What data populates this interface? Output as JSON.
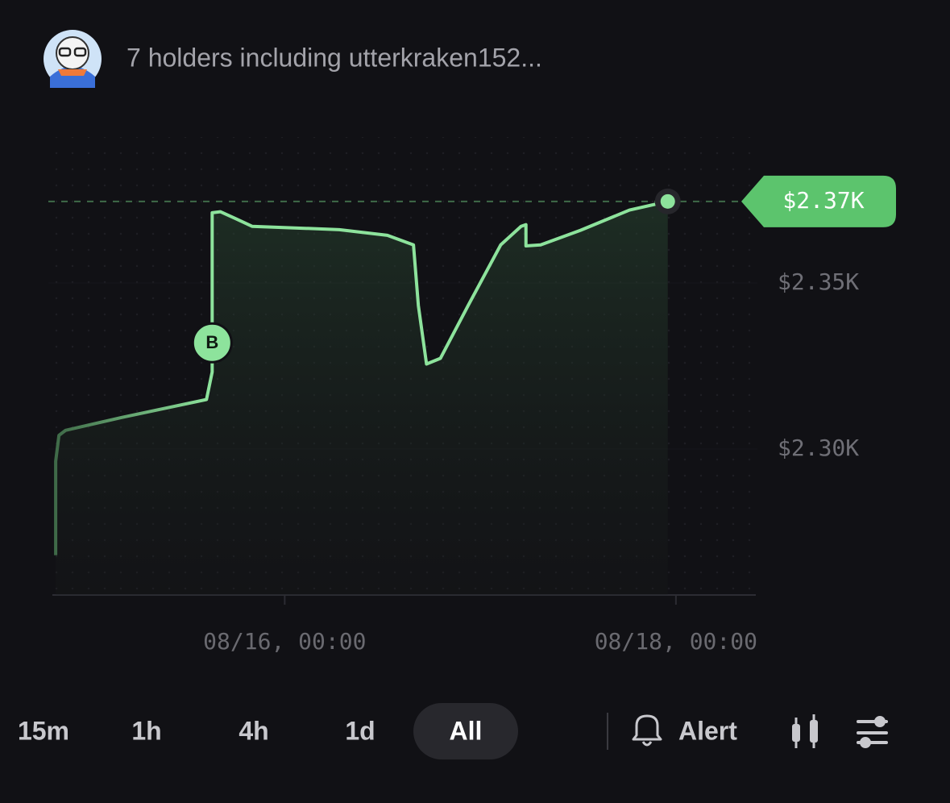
{
  "header": {
    "text": "7 holders including utterkraken152..."
  },
  "chart_data": {
    "type": "line",
    "x": [
      -28.1,
      -28.1,
      -27.7,
      -26.9,
      -20.0,
      -9.6,
      -8.9,
      -8.9,
      -7.9,
      -6.1,
      -4.0,
      6.7,
      12.6,
      15.8,
      16.4,
      17.4,
      19.1,
      22.5,
      26.5,
      29.0,
      29.6,
      29.6,
      31.4,
      36.3,
      42.3,
      47.0
    ],
    "values": [
      2268,
      2296.3,
      2304.1,
      2305.6,
      2309.5,
      2314.9,
      2323.2,
      2371.2,
      2371.5,
      2369.5,
      2367.1,
      2366.1,
      2364.4,
      2361.5,
      2343.2,
      2325.6,
      2327.3,
      2343.2,
      2361.5,
      2367.1,
      2367.6,
      2361.2,
      2361.5,
      2365.9,
      2372.0,
      2374.6
    ],
    "color": "#8de39c",
    "xlim": [
      -29,
      58
    ],
    "ylim": [
      2256,
      2394
    ],
    "xticks": [
      {
        "value": 0,
        "label": "08/16, 00:00"
      },
      {
        "value": 48,
        "label": "08/18, 00:00"
      }
    ],
    "yticks": [
      {
        "value": 2300,
        "label": "$2.30K"
      },
      {
        "value": 2350,
        "label": "$2.35K"
      }
    ],
    "buy_marker": {
      "label": "B",
      "x": -8.9,
      "y": 2332
    },
    "last_value": {
      "value": 2374.6,
      "label": "$2.37K",
      "color": "#5cc46d"
    }
  },
  "controls": {
    "timeframes": [
      "15m",
      "1h",
      "4h",
      "1d",
      "All"
    ],
    "active_index": 4,
    "alert": "Alert"
  }
}
